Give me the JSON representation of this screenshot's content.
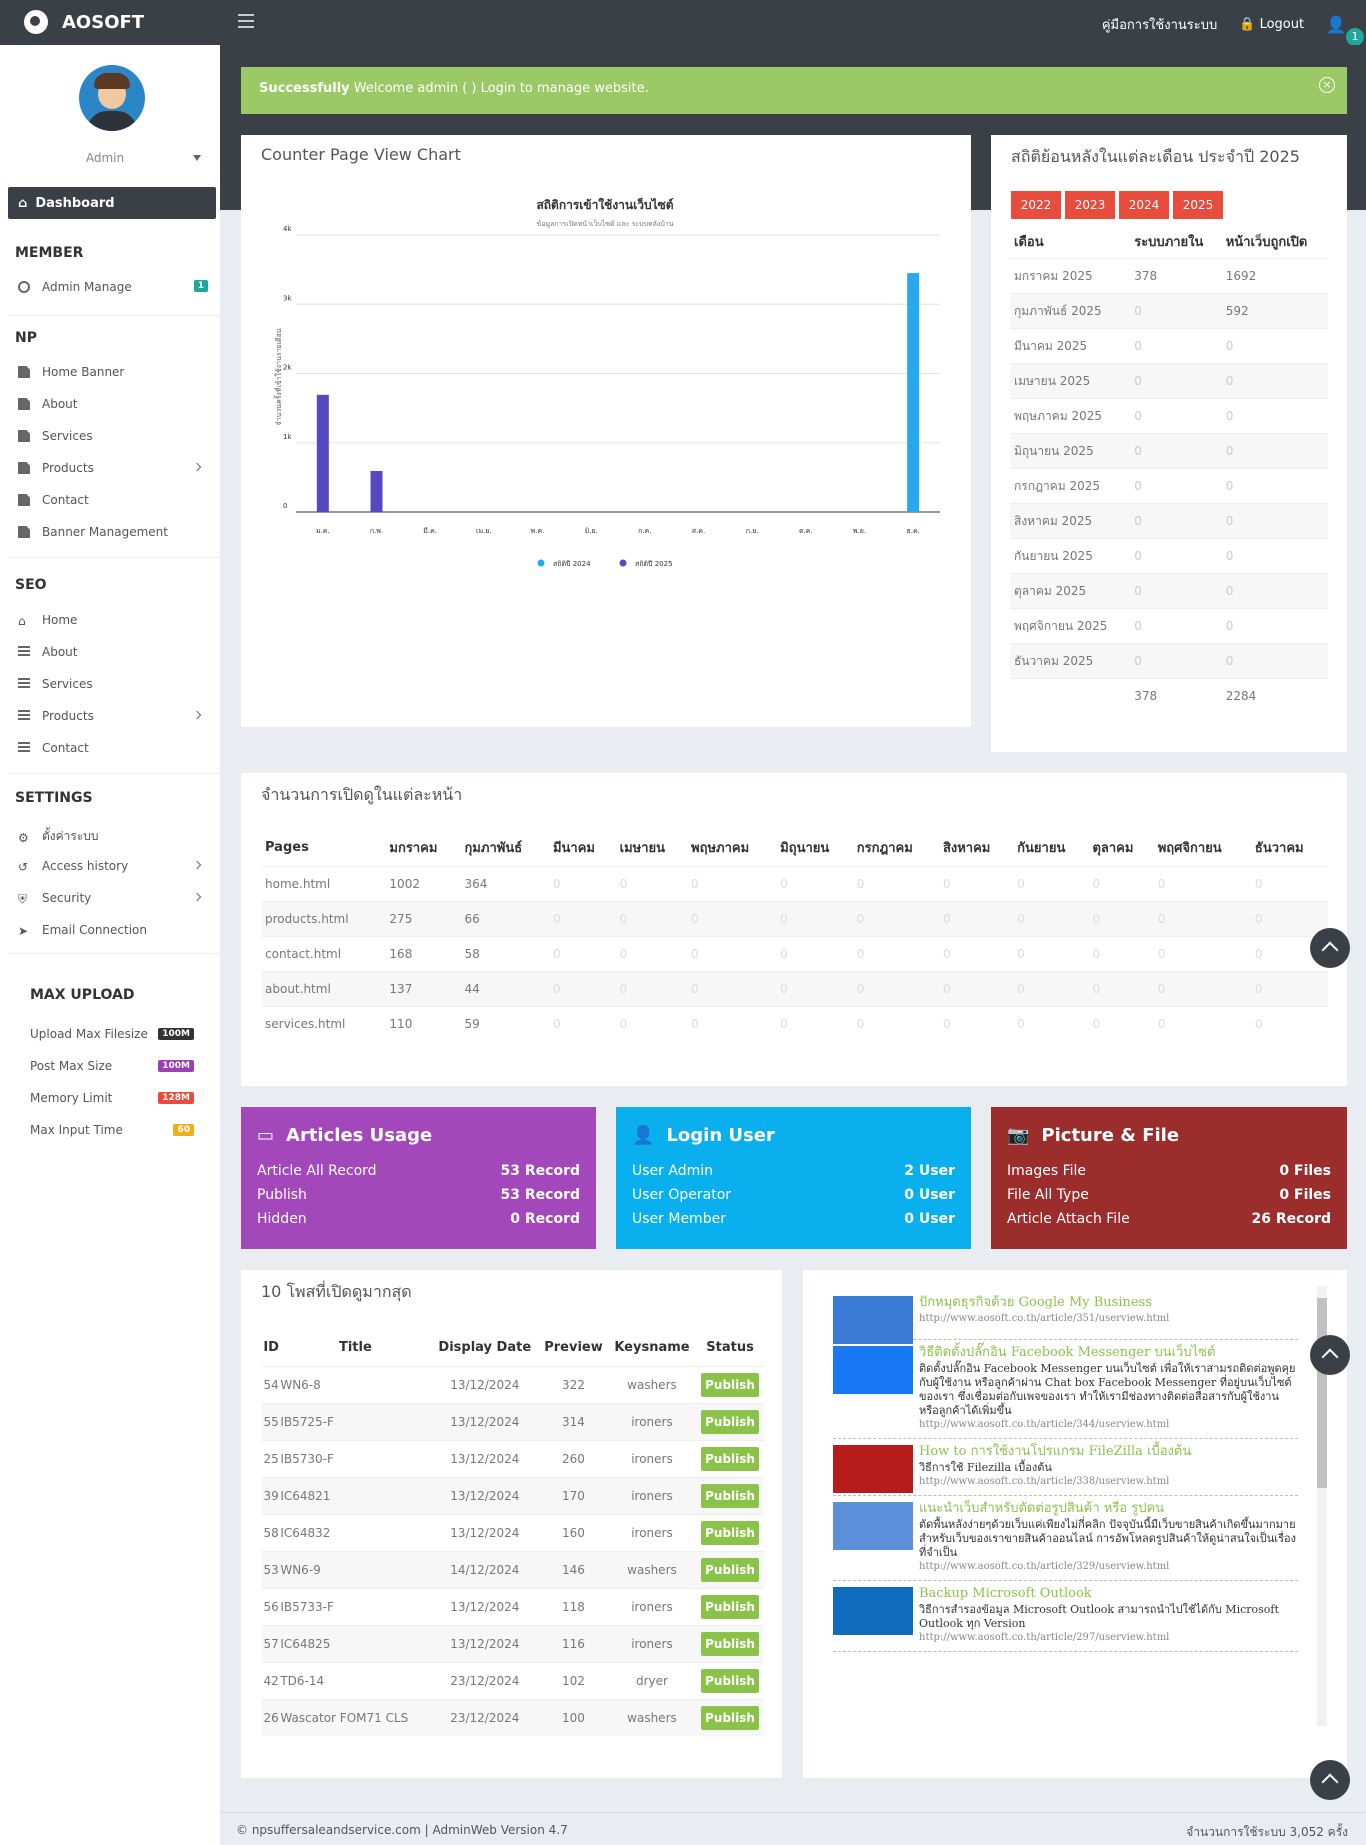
{
  "topbar": {
    "brand": "AOSOFT",
    "manual": "คู่มือการใช้งานระบบ",
    "logout": "Logout",
    "notif": "1"
  },
  "sidebar": {
    "admin": "Admin",
    "dashboard": "Dashboard",
    "member_title": "MEMBER",
    "admin_manage": "Admin Manage",
    "admin_badge": "1",
    "np_title": "NP",
    "np_items": [
      "Home Banner",
      "About",
      "Services",
      "Products",
      "Contact",
      "Banner Management"
    ],
    "seo_title": "SEO",
    "seo_items": [
      "Home",
      "About",
      "Services",
      "Products",
      "Contact"
    ],
    "settings_title": "SETTINGS",
    "settings_items": [
      "ตั้งค่าระบบ",
      "Access history",
      "Security",
      "Email Connection"
    ],
    "upload_title": "MAX UPLOAD",
    "upload": [
      {
        "label": "Upload Max Filesize",
        "val": "100M",
        "color": "#333"
      },
      {
        "label": "Post Max Size",
        "val": "100M",
        "color": "#9b3fb6"
      },
      {
        "label": "Memory Limit",
        "val": "128M",
        "color": "#e74c3c"
      },
      {
        "label": "Max Input Time",
        "val": "60",
        "color": "#f0ad1c"
      }
    ]
  },
  "alert": {
    "strong": "Successfully",
    "text": " Welcome admin ( ) Login to manage website."
  },
  "chart": {
    "card_title": "Counter Page View Chart",
    "title": "สถิติการเข้าใช้งานเว็บไซต์",
    "subtitle": "ข้อมูลการเปิดหน้าเว็บไซต์ และ ระบบหลังบ้าน",
    "ylabel": "จำนวนครั้งที่เข้าใช้งานรายเดือน"
  },
  "chart_data": {
    "type": "bar",
    "title": "สถิติการเข้าใช้งานเว็บไซต์",
    "subtitle": "ข้อมูลการเปิดหน้าเว็บไซต์ และ ระบบหลังบ้าน",
    "ylabel": "จำนวนครั้งที่เข้าใช้งานรายเดือน",
    "categories": [
      "ม.ค.",
      "ก.พ.",
      "มี.ค.",
      "เม.ย.",
      "พ.ค.",
      "มิ.ย.",
      "ก.ค.",
      "ส.ค.",
      "ก.ย.",
      "ต.ค.",
      "พ.ย.",
      "ธ.ค."
    ],
    "yticks": [
      "0",
      "1k",
      "2k",
      "3k",
      "4k"
    ],
    "ylim": [
      0,
      4000
    ],
    "series": [
      {
        "name": "สถิติปี 2024",
        "color": "#29a8f0",
        "values": [
          0,
          0,
          0,
          0,
          0,
          0,
          0,
          0,
          0,
          0,
          0,
          3450
        ]
      },
      {
        "name": "สถิติปี 2025",
        "color": "#5649c0",
        "values": [
          1692,
          592,
          0,
          0,
          0,
          0,
          0,
          0,
          0,
          0,
          0,
          0
        ]
      }
    ],
    "legend": "bottom"
  },
  "monthly": {
    "title": "สถิติย้อนหลังในแต่ละเดือน ประจำปี 2025",
    "years": [
      "2022",
      "2023",
      "2024",
      "2025"
    ],
    "headers": [
      "เดือน",
      "ระบบภายใน",
      "หน้าเว็บถูกเปิด"
    ],
    "rows": [
      [
        "มกราคม 2025",
        "378",
        "1692"
      ],
      [
        "กุมภาพันธ์ 2025",
        "0",
        "592"
      ],
      [
        "มีนาคม 2025",
        "0",
        "0"
      ],
      [
        "เมษายน 2025",
        "0",
        "0"
      ],
      [
        "พฤษภาคม 2025",
        "0",
        "0"
      ],
      [
        "มิถุนายน 2025",
        "0",
        "0"
      ],
      [
        "กรกฎาคม 2025",
        "0",
        "0"
      ],
      [
        "สิงหาคม 2025",
        "0",
        "0"
      ],
      [
        "กันยายน 2025",
        "0",
        "0"
      ],
      [
        "ตุลาคม 2025",
        "0",
        "0"
      ],
      [
        "พฤศจิกายน 2025",
        "0",
        "0"
      ],
      [
        "ธันวาคม 2025",
        "0",
        "0"
      ],
      [
        "",
        "378",
        "2284"
      ]
    ]
  },
  "pageviews": {
    "title": "จำนวนการเปิดดูในแต่ละหน้า",
    "headers": [
      "Pages",
      "มกราคม",
      "กุมภาพันธ์",
      "มีนาคม",
      "เมษายน",
      "พฤษภาคม",
      "มิถุนายน",
      "กรกฎาคม",
      "สิงหาคม",
      "กันยายน",
      "ตุลาคม",
      "พฤศจิกายน",
      "ธันวาคม"
    ],
    "rows": [
      [
        "home.html",
        "1002",
        "364",
        "0",
        "0",
        "0",
        "0",
        "0",
        "0",
        "0",
        "0",
        "0",
        "0"
      ],
      [
        "products.html",
        "275",
        "66",
        "0",
        "0",
        "0",
        "0",
        "0",
        "0",
        "0",
        "0",
        "0",
        "0"
      ],
      [
        "contact.html",
        "168",
        "58",
        "0",
        "0",
        "0",
        "0",
        "0",
        "0",
        "0",
        "0",
        "0",
        "0"
      ],
      [
        "about.html",
        "137",
        "44",
        "0",
        "0",
        "0",
        "0",
        "0",
        "0",
        "0",
        "0",
        "0",
        "0"
      ],
      [
        "services.html",
        "110",
        "59",
        "0",
        "0",
        "0",
        "0",
        "0",
        "0",
        "0",
        "0",
        "0",
        "0"
      ]
    ]
  },
  "stats": [
    {
      "title": "Articles Usage",
      "color": "#a348bb",
      "rows": [
        [
          "Article All Record",
          "53 Record"
        ],
        [
          "Publish",
          "53 Record"
        ],
        [
          "Hidden",
          "0 Record"
        ]
      ]
    },
    {
      "title": "Login User",
      "color": "#0ab0ee",
      "rows": [
        [
          "User Admin",
          "2 User"
        ],
        [
          "User Operator",
          "0 User"
        ],
        [
          "User Member",
          "0 User"
        ]
      ]
    },
    {
      "title": "Picture & File",
      "color": "#9b2d2d",
      "rows": [
        [
          "Images File",
          "0 Files"
        ],
        [
          "File All Type",
          "0 Files"
        ],
        [
          "Article Attach File",
          "26 Record"
        ]
      ]
    }
  ],
  "posts": {
    "title": "10 โพสที่เปิดดูมากสุด",
    "headers": [
      "ID",
      "Title",
      "Display Date",
      "Preview",
      "Keysname",
      "Status"
    ],
    "rows": [
      [
        "54",
        "WN6-8",
        "13/12/2024",
        "322",
        "washers",
        "Publish"
      ],
      [
        "55",
        "IB5725-F",
        "13/12/2024",
        "314",
        "ironers",
        "Publish"
      ],
      [
        "25",
        "IB5730-F",
        "13/12/2024",
        "260",
        "ironers",
        "Publish"
      ],
      [
        "39",
        "IC64821",
        "13/12/2024",
        "170",
        "ironers",
        "Publish"
      ],
      [
        "58",
        "IC64832",
        "13/12/2024",
        "160",
        "ironers",
        "Publish"
      ],
      [
        "53",
        "WN6-9",
        "14/12/2024",
        "146",
        "washers",
        "Publish"
      ],
      [
        "56",
        "IB5733-F",
        "13/12/2024",
        "118",
        "ironers",
        "Publish"
      ],
      [
        "57",
        "IC64825",
        "13/12/2024",
        "116",
        "ironers",
        "Publish"
      ],
      [
        "42",
        "TD6-14",
        "23/12/2024",
        "102",
        "dryer",
        "Publish"
      ],
      [
        "26",
        "Wascator FOM71 CLS",
        "23/12/2024",
        "100",
        "washers",
        "Publish"
      ]
    ]
  },
  "news": [
    {
      "title": "ปักหมุดธุรกิจด้วย Google My Business",
      "desc": "",
      "url": "http://www.aosoft.co.th/article/351/userview.html",
      "color": "#3a7bd5"
    },
    {
      "title": "วิธีติดตั้งปลั๊กอิน Facebook Messenger บนเว็บไซต์",
      "desc": "ติดตั้งปลั๊กอิน Facebook Messenger บนเว็บไซต์ เพื่อให้เราสามรถติดต่อพูดคุยกับผู้ใช้งาน หรือลูกค้าผ่าน Chat box Facebook Messenger ที่อยู่บนเว็บไซต์ของเรา ซึ่งเชื่อมต่อกับเพจของเรา ทำให้เรามีช่องทางติดต่อสื่อสารกับผู้ใช้งาน หรือลูกค้าได้เพิ่มขึ้น",
      "url": "http://www.aosoft.co.th/article/344/userview.html",
      "color": "#1877f2"
    },
    {
      "title": "How to การใช้งานโปรแกรม FileZilla เบื้องต้น",
      "desc": "วิธีการใช้ Filezilla เบื้องต้น",
      "url": "http://www.aosoft.co.th/article/338/userview.html",
      "color": "#b71c1c"
    },
    {
      "title": "แนะนำเว็บสำหรับตัดต่อรูปสินค้า หรือ รูปคน",
      "desc": "ตัดพื้นหลังง่ายๆด้วยเว็บแค่เพียงไม่กี่คลิก ปัจจุบันนี้มีเว็บขายสินค้าเกิดขึ้นมากมาย สำหรับเว็บของเราขายสินค้าออนไลน์ การอัพโหลดรูปสินค้าให้ดูน่าสนใจเป็นเรื่องที่จำเป็น",
      "url": "http://www.aosoft.co.th/article/329/userview.html",
      "color": "#5b8fd9"
    },
    {
      "title": "Backup Microsoft Outlook",
      "desc": "วิธีการสำรองข้อมูล Microsoft Outlook สามารถนำไปใช้ได้กับ Microsoft Outlook ทุก Version",
      "url": "http://www.aosoft.co.th/article/297/userview.html",
      "color": "#0f6cbd"
    }
  ],
  "footer": {
    "left": "© npsuffersaleandservice.com",
    "version": "AdminWeb Version 4.7",
    "right": "จำนวนการใช้ระบบ 3,052 ครั้ง"
  }
}
